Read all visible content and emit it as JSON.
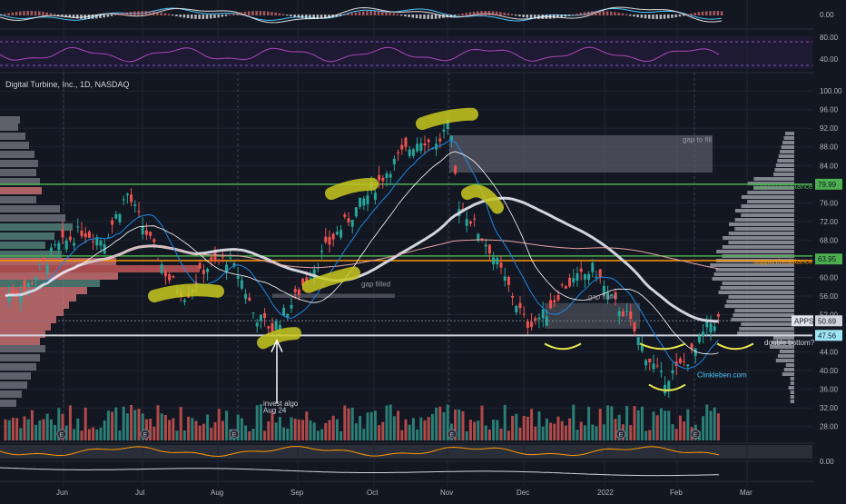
{
  "header": {
    "title": "Digital Turbine, Inc., 1D, NASDAQ"
  },
  "colors": {
    "background": "#131722",
    "bull": "#26a69a",
    "bear": "#ef5350",
    "grid": "#1f2430",
    "highlight": "#c8c81e",
    "support_green": "#4caf50",
    "resistance_orange": "#ff9800",
    "label_cyan": "#9ee7f5"
  },
  "chart_data": {
    "type": "candlestick",
    "symbol": "APPS",
    "y_ticks": [
      "100.00",
      "96.00",
      "92.00",
      "88.00",
      "84.00",
      "80.00",
      "76.00",
      "72.00",
      "68.00",
      "64.00",
      "60.00",
      "56.00",
      "52.00",
      "48.00",
      "44.00",
      "40.00",
      "36.00",
      "32.00",
      "28.00"
    ],
    "ylim": [
      26,
      101
    ],
    "x_ticks": [
      "Jun",
      "Jul",
      "Aug",
      "Sep",
      "Oct",
      "Nov",
      "Dec",
      "2022",
      "Feb",
      "Mar"
    ],
    "price_labels": [
      {
        "text": "79.99",
        "value": 79.99,
        "color": "#4caf50"
      },
      {
        "text": "63.95",
        "value": 63.95,
        "color": "#4caf50"
      },
      {
        "text": "50.69",
        "value": 50.69,
        "color": "#d1d4dc",
        "symbol": "APPS"
      },
      {
        "text": "47.56",
        "value": 47.56,
        "color": "#9ee7f5"
      }
    ],
    "annotations": [
      {
        "text": "gap to fill",
        "level": 89.0
      },
      {
        "text": "support/resistance",
        "level": 79.0
      },
      {
        "text": "support/resistance",
        "level": 62.9
      },
      {
        "text": "gap filled",
        "level": 58.0
      },
      {
        "text": "gap filled",
        "level": 55.3
      },
      {
        "text": "double bottom?",
        "level": 45.5
      },
      {
        "text": "invest algo",
        "level": 32.4
      },
      {
        "text": "Aug 24",
        "level": 31.0
      },
      {
        "text": "Clinkleben.com",
        "level": 38.6
      }
    ],
    "rsi_ticks": [
      "80.00",
      "40.00"
    ],
    "osc_ticks": [
      "0.00"
    ],
    "bottom_osc_ticks": [
      "0.00"
    ]
  }
}
